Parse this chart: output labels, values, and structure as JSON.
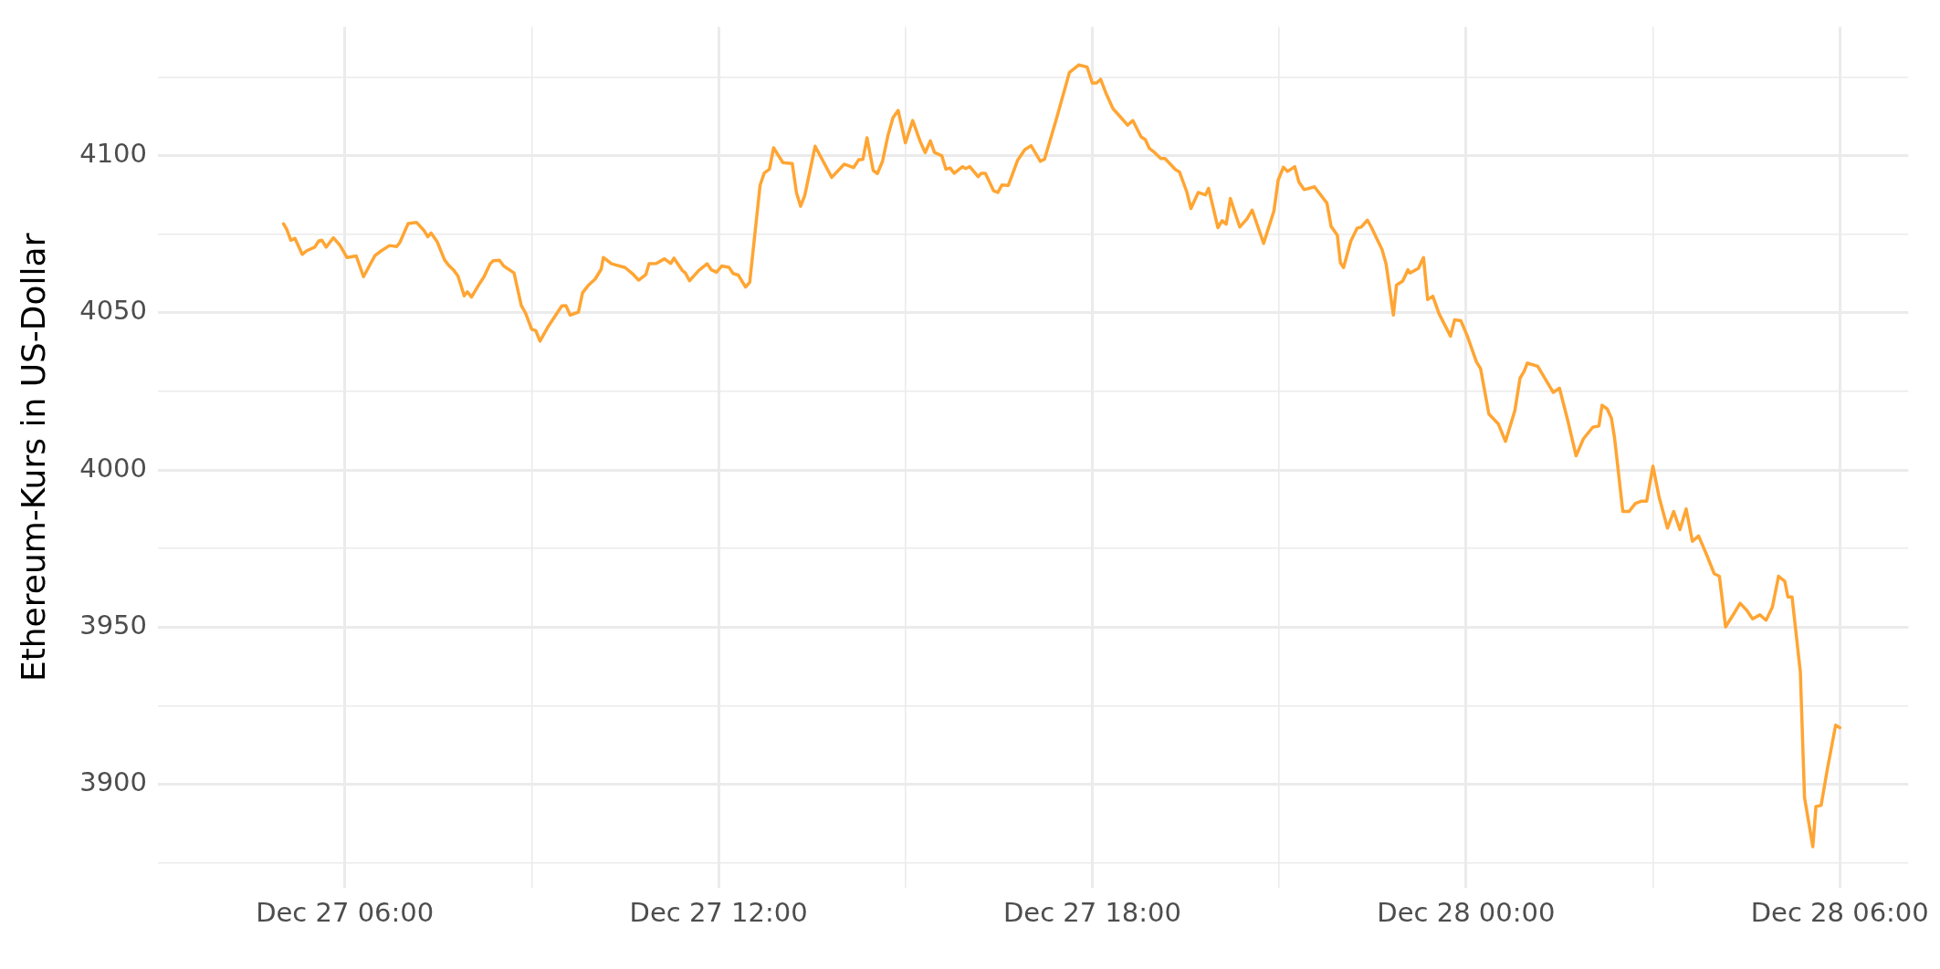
{
  "chart_data": {
    "type": "line",
    "ylabel": "Ethereum-Kurs in US-Dollar",
    "grid": true,
    "legend": false,
    "marker": "none",
    "line_style": "solid",
    "xlim": [
      "--12-27T03:00",
      "--12-28T07:06"
    ],
    "ylim": [
      3867,
      4141
    ],
    "xticks": [
      {
        "value": "--12-27T06:00",
        "label": "Dec 27 06:00"
      },
      {
        "value": "--12-27T09:00",
        "label": null
      },
      {
        "value": "--12-27T12:00",
        "label": "Dec 27 12:00"
      },
      {
        "value": "--12-27T15:00",
        "label": null
      },
      {
        "value": "--12-27T18:00",
        "label": "Dec 27 18:00"
      },
      {
        "value": "--12-27T21:00",
        "label": null
      },
      {
        "value": "--12-28T00:00",
        "label": "Dec 28 00:00"
      },
      {
        "value": "--12-28T03:00",
        "label": null
      },
      {
        "value": "--12-28T06:00",
        "label": "Dec 28 06:00"
      }
    ],
    "yticks": [
      {
        "value": 3875,
        "label": null
      },
      3900,
      {
        "value": 3925,
        "label": null
      },
      3950,
      {
        "value": 3975,
        "label": null
      },
      4000,
      {
        "value": 4025,
        "label": null
      },
      4050,
      {
        "value": 4075,
        "label": null
      },
      4100,
      {
        "value": 4125,
        "label": null
      }
    ],
    "x": [
      "--12-27T05:01",
      "--12-27T05:04",
      "--12-27T05:08",
      "--12-27T05:12",
      "--12-27T05:19",
      "--12-27T05:23",
      "--12-27T05:31",
      "--12-27T05:35",
      "--12-27T05:38",
      "--12-27T05:42",
      "--12-27T05:49",
      "--12-27T05:55",
      "--12-27T05:59",
      "--12-27T06:02",
      "--12-27T06:11",
      "--12-27T06:18",
      "--12-27T06:29",
      "--12-27T06:35",
      "--12-27T06:43",
      "--12-27T06:50",
      "--12-27T06:53",
      "--12-27T07:01",
      "--12-27T07:09",
      "--12-27T07:16",
      "--12-27T07:20",
      "--12-27T07:23",
      "--12-27T07:29",
      "--12-27T07:36",
      "--12-27T07:40",
      "--12-27T07:45",
      "--12-27T07:49",
      "--12-27T07:55",
      "--12-27T07:58",
      "--12-27T08:02",
      "--12-27T08:10",
      "--12-27T08:14",
      "--12-27T08:20",
      "--12-27T08:23",
      "--12-27T08:29",
      "--12-27T08:33",
      "--12-27T08:43",
      "--12-27T08:50",
      "--12-27T08:54",
      "--12-27T09:00",
      "--12-27T09:04",
      "--12-27T09:08",
      "--12-27T09:16",
      "--12-27T09:29",
      "--12-27T09:33",
      "--12-27T09:37",
      "--12-27T09:45",
      "--12-27T09:49",
      "--12-27T09:55",
      "--12-27T10:01",
      "--12-27T10:07",
      "--12-27T10:09",
      "--12-27T10:17",
      "--12-27T10:30",
      "--12-27T10:37",
      "--12-27T10:43",
      "--12-27T10:50",
      "--12-27T10:53",
      "--12-27T11:00",
      "--12-27T11:08",
      "--12-27T11:14",
      "--12-27T11:17",
      "--12-27T11:25",
      "--12-27T11:28",
      "--12-27T11:32",
      "--12-27T11:41",
      "--12-27T11:49",
      "--12-27T11:53",
      "--12-27T11:58",
      "--12-27T12:03",
      "--12-27T12:10",
      "--12-27T12:14",
      "--12-27T12:19",
      "--12-27T12:26",
      "--12-27T12:30",
      "--12-27T12:40",
      "--12-27T12:44",
      "--12-27T12:49",
      "--12-27T12:53",
      "--12-27T13:02",
      "--12-27T13:11",
      "--12-27T13:15",
      "--12-27T13:19",
      "--12-27T13:23",
      "--12-27T13:33",
      "--12-27T13:49",
      "--12-27T14:01",
      "--12-27T14:10",
      "--12-27T14:15",
      "--12-27T14:19",
      "--12-27T14:23",
      "--12-27T14:29",
      "--12-27T14:33",
      "--12-27T14:38",
      "--12-27T14:43",
      "--12-27T14:48",
      "--12-27T14:53",
      "--12-27T15:00",
      "--12-27T15:07",
      "--12-27T15:14",
      "--12-27T15:19",
      "--12-27T15:24",
      "--12-27T15:28",
      "--12-27T15:35",
      "--12-27T15:39",
      "--12-27T15:43",
      "--12-27T15:47",
      "--12-27T15:55",
      "--12-27T15:58",
      "--12-27T16:02",
      "--12-27T16:10",
      "--12-27T16:13",
      "--12-27T16:17",
      "--12-27T16:25",
      "--12-27T16:29",
      "--12-27T16:33",
      "--12-27T16:39",
      "--12-27T16:48",
      "--12-27T16:55",
      "--12-27T17:01",
      "--12-27T17:10",
      "--12-27T17:14",
      "--12-27T17:20",
      "--12-27T17:25",
      "--12-27T17:38",
      "--12-27T17:47",
      "--12-27T17:55",
      "--12-27T18:00",
      "--12-27T18:04",
      "--12-27T18:08",
      "--12-27T18:13",
      "--12-27T18:20",
      "--12-27T18:25",
      "--12-27T18:34",
      "--12-27T18:39",
      "--12-27T18:47",
      "--12-27T18:51",
      "--12-27T18:55",
      "--12-27T19:00",
      "--12-27T19:06",
      "--12-27T19:10",
      "--12-27T19:20",
      "--12-27T19:24",
      "--12-27T19:31",
      "--12-27T19:35",
      "--12-27T19:42",
      "--12-27T19:49",
      "--12-27T19:52",
      "--12-27T20:01",
      "--12-27T20:05",
      "--12-27T20:09",
      "--12-27T20:13",
      "--12-27T20:17",
      "--12-27T20:22",
      "--12-27T20:29",
      "--12-27T20:34",
      "--12-27T20:40",
      "--12-27T20:45",
      "--12-27T20:55",
      "--12-27T20:59",
      "--12-27T21:04",
      "--12-27T21:08",
      "--12-27T21:15",
      "--12-27T21:19",
      "--12-27T21:24",
      "--12-27T21:34",
      "--12-27T21:46",
      "--12-27T21:50",
      "--12-27T21:56",
      "--12-27T21:59",
      "--12-27T22:02",
      "--12-27T22:09",
      "--12-27T22:15",
      "--12-27T22:19",
      "--12-27T22:25",
      "--12-27T22:29",
      "--12-27T22:34",
      "--12-27T22:39",
      "--12-27T22:43",
      "--12-27T22:50",
      "--12-27T22:53",
      "--12-27T22:59",
      "--12-27T23:04",
      "--12-27T23:06",
      "--12-27T23:14",
      "--12-27T23:19",
      "--12-27T23:23",
      "--12-27T23:28",
      "--12-27T23:34",
      "--12-27T23:45",
      "--12-27T23:49",
      "--12-27T23:55",
      "--12-28T00:01",
      "--12-28T00:10",
      "--12-28T00:14",
      "--12-28T00:22",
      "--12-28T00:31",
      "--12-28T00:38",
      "--12-28T00:47",
      "--12-28T00:52",
      "--12-28T00:56",
      "--12-28T00:59",
      "--12-28T01:09",
      "--12-28T01:18",
      "--12-28T01:24",
      "--12-28T01:30",
      "--12-28T01:38",
      "--12-28T01:46",
      "--12-28T01:53",
      "--12-28T02:02",
      "--12-28T02:08",
      "--12-28T02:11",
      "--12-28T02:16",
      "--12-28T02:20",
      "--12-28T02:23",
      "--12-28T02:31",
      "--12-28T02:37",
      "--12-28T02:43",
      "--12-28T02:49",
      "--12-28T02:54",
      "--12-28T03:00",
      "--12-28T03:06",
      "--12-28T03:14",
      "--12-28T03:20",
      "--12-28T03:26",
      "--12-28T03:32",
      "--12-28T03:38",
      "--12-28T03:44",
      "--12-28T03:52",
      "--12-28T03:59",
      "--12-28T04:04",
      "--12-28T04:10",
      "--12-28T04:18",
      "--12-28T04:24",
      "--12-28T04:30",
      "--12-28T04:36",
      "--12-28T04:43",
      "--12-28T04:49",
      "--12-28T04:55",
      "--12-28T05:01",
      "--12-28T05:07",
      "--12-28T05:10",
      "--12-28T05:14",
      "--12-28T05:22",
      "--12-28T05:26",
      "--12-28T05:34",
      "--12-28T05:37",
      "--12-28T05:42",
      "--12-28T05:48",
      "--12-28T05:56",
      "--12-28T06:00"
    ],
    "series": [
      {
        "color": "#ffa533",
        "values": [
          4078.3,
          4076.6,
          4073.1,
          4073.7,
          4068.6,
          4069.7,
          4070.9,
          4072.9,
          4073.1,
          4070.9,
          4073.9,
          4071.6,
          4069.4,
          4067.6,
          4068.1,
          4061.5,
          4068.2,
          4069.7,
          4071.4,
          4071.1,
          4072.4,
          4078.4,
          4078.8,
          4076.3,
          4074.2,
          4075.4,
          4072.6,
          4066.9,
          4065.1,
          4063.5,
          4061.7,
          4055.4,
          4056.7,
          4055.0,
          4059.4,
          4061.4,
          4065.6,
          4066.6,
          4066.7,
          4064.9,
          4062.7,
          4052.3,
          4050.0,
          4044.8,
          4044.3,
          4041.0,
          4045.7,
          4052.2,
          4052.3,
          4049.3,
          4050.2,
          4056.4,
          4058.9,
          4060.7,
          4063.9,
          4067.6,
          4065.6,
          4064.4,
          4062.5,
          4060.4,
          4062.2,
          4065.6,
          4065.7,
          4067.2,
          4065.7,
          4067.4,
          4063.5,
          4062.7,
          4060.2,
          4063.5,
          4065.6,
          4063.7,
          4062.9,
          4064.9,
          4064.5,
          4062.5,
          4062.0,
          4058.2,
          4059.7,
          4090.6,
          4094.5,
          4095.7,
          4102.5,
          4097.8,
          4097.5,
          4088.3,
          4083.9,
          4087.3,
          4103.0,
          4093.1,
          4097.3,
          4096.2,
          4098.7,
          4098.8,
          4105.7,
          4095.3,
          4094.3,
          4098.3,
          4106.2,
          4112.1,
          4114.4,
          4104.1,
          4111.2,
          4104.7,
          4101.0,
          4104.7,
          4101.0,
          4100.0,
          4095.7,
          4096.1,
          4094.4,
          4096.5,
          4095.9,
          4096.5,
          4093.3,
          4094.4,
          4094.4,
          4088.8,
          4088.3,
          4090.7,
          4090.5,
          4098.5,
          4101.9,
          4103.2,
          4098.2,
          4098.9,
          4105.6,
          4111.2,
          4126.5,
          4128.9,
          4128.2,
          4123.1,
          4123.1,
          4124.3,
          4120.0,
          4114.9,
          4113.1,
          4109.7,
          4111.2,
          4106.0,
          4105.1,
          4102.3,
          4101.0,
          4099.1,
          4099.1,
          4095.6,
          4094.8,
          4088.5,
          4083.2,
          4088.3,
          4087.5,
          4089.6,
          4077.1,
          4079.3,
          4078.2,
          4086.4,
          4082.3,
          4077.3,
          4079.9,
          4082.7,
          4076.9,
          4072.1,
          4082.5,
          4092.2,
          4096.3,
          4095.0,
          4096.5,
          4091.6,
          4089.2,
          4090.1,
          4084.9,
          4077.5,
          4074.7,
          4065.9,
          4064.4,
          4072.8,
          4076.9,
          4077.3,
          4079.5,
          4077.1,
          4073.6,
          4070.2,
          4065.5,
          4049.3,
          4058.8,
          4060.1,
          4063.7,
          4062.7,
          4064.1,
          4067.6,
          4054.2,
          4055.3,
          4049.7,
          4042.6,
          4047.8,
          4047.5,
          4042.8,
          4034.4,
          4032.2,
          4017.8,
          4014.7,
          4009.1,
          4018.9,
          4029.2,
          4031.4,
          4034.0,
          4033.0,
          4028.0,
          4024.7,
          4026.0,
          4015.7,
          4004.5,
          4009.9,
          4013.6,
          4014.0,
          4020.6,
          4019.4,
          4016.5,
          4010.3,
          3986.8,
          3986.8,
          3989.3,
          3990.1,
          3990.1,
          4001.2,
          3991.3,
          3981.5,
          3986.8,
          3981.0,
          3987.6,
          3977.3,
          3979.0,
          3972.8,
          3967.0,
          3966.2,
          3950.1,
          3954.3,
          3957.6,
          3955.5,
          3952.6,
          3953.9,
          3952.2,
          3956.3,
          3966.2,
          3964.6,
          3959.6,
          3959.6,
          3935.7,
          3895.8,
          3880.1,
          3892.9,
          3893.3,
          3904.8,
          3918.8,
          3918.0
        ]
      }
    ]
  }
}
